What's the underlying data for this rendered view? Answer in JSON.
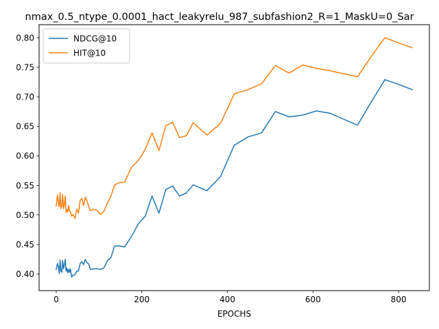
{
  "chart_data": {
    "type": "line",
    "title": "nmax_0.5_ntype_0.0001_hact_leakyrelu_987_subfashion2_R=1_MaskU=0_Sar",
    "xlabel": "EPOCHS",
    "ylabel": "",
    "xlim": [
      -40,
      872
    ],
    "ylim": [
      0.372,
      0.822
    ],
    "xticks": [
      0,
      200,
      400,
      600,
      800
    ],
    "yticks": [
      0.4,
      0.45,
      0.5,
      0.55,
      0.6,
      0.65,
      0.7,
      0.75,
      0.8
    ],
    "xtick_labels": [
      "0",
      "200",
      "400",
      "600",
      "800"
    ],
    "ytick_labels": [
      "0.40",
      "0.45",
      "0.50",
      "0.55",
      "0.60",
      "0.65",
      "0.70",
      "0.75",
      "0.80"
    ],
    "grid": false,
    "legend_position": "upper-left",
    "series": [
      {
        "name": "NDCG@10",
        "color": "#1f77b4",
        "x": [
          0,
          3,
          5,
          7,
          9,
          11,
          13,
          15,
          17,
          19,
          21,
          23,
          25,
          27,
          29,
          31,
          33,
          36,
          39,
          44,
          48,
          52,
          56,
          60,
          64,
          68,
          72,
          76,
          80,
          88,
          96,
          104,
          112,
          120,
          128,
          136,
          144,
          160,
          176,
          192,
          208,
          224,
          240,
          256,
          272,
          288,
          304,
          320,
          352,
          384,
          416,
          448,
          480,
          512,
          544,
          576,
          608,
          640,
          672,
          704,
          736,
          768,
          800,
          832
        ],
        "y": [
          0.408,
          0.418,
          0.412,
          0.401,
          0.424,
          0.405,
          0.403,
          0.423,
          0.409,
          0.415,
          0.425,
          0.405,
          0.41,
          0.402,
          0.408,
          0.403,
          0.409,
          0.395,
          0.398,
          0.399,
          0.405,
          0.405,
          0.418,
          0.421,
          0.416,
          0.425,
          0.419,
          0.417,
          0.408,
          0.409,
          0.409,
          0.408,
          0.411,
          0.423,
          0.428,
          0.447,
          0.448,
          0.446,
          0.464,
          0.485,
          0.498,
          0.532,
          0.503,
          0.543,
          0.549,
          0.532,
          0.537,
          0.551,
          0.541,
          0.565,
          0.618,
          0.632,
          0.639,
          0.675,
          0.666,
          0.669,
          0.676,
          0.672,
          0.662,
          0.652,
          0.691,
          0.729,
          0.721,
          0.712
        ]
      },
      {
        "name": "HIT@10",
        "color": "#ff7f0e",
        "x": [
          0,
          3,
          5,
          7,
          9,
          11,
          13,
          15,
          17,
          19,
          21,
          23,
          25,
          27,
          29,
          31,
          33,
          36,
          39,
          44,
          48,
          52,
          56,
          60,
          64,
          68,
          72,
          76,
          80,
          88,
          96,
          104,
          112,
          120,
          128,
          136,
          144,
          160,
          176,
          192,
          208,
          224,
          240,
          256,
          272,
          288,
          304,
          320,
          352,
          384,
          416,
          448,
          480,
          512,
          544,
          576,
          608,
          640,
          672,
          704,
          736,
          768,
          800,
          832
        ],
        "y": [
          0.515,
          0.534,
          0.521,
          0.514,
          0.538,
          0.511,
          0.515,
          0.535,
          0.511,
          0.516,
          0.532,
          0.504,
          0.509,
          0.505,
          0.516,
          0.507,
          0.506,
          0.498,
          0.501,
          0.494,
          0.51,
          0.503,
          0.525,
          0.528,
          0.516,
          0.53,
          0.524,
          0.514,
          0.507,
          0.51,
          0.507,
          0.501,
          0.507,
          0.521,
          0.532,
          0.55,
          0.554,
          0.556,
          0.581,
          0.592,
          0.611,
          0.639,
          0.609,
          0.651,
          0.657,
          0.631,
          0.634,
          0.656,
          0.635,
          0.655,
          0.705,
          0.712,
          0.722,
          0.753,
          0.74,
          0.754,
          0.748,
          0.744,
          0.739,
          0.734,
          0.768,
          0.8,
          0.791,
          0.783
        ]
      }
    ]
  }
}
